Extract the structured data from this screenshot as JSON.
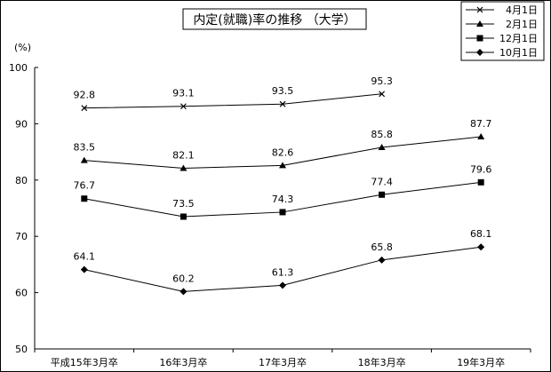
{
  "chart_data": {
    "type": "line",
    "title": "内定(就職)率の推移 （大学）",
    "yunit": "(%)",
    "ylim": [
      50,
      100
    ],
    "yticks": [
      50,
      60,
      70,
      80,
      90,
      100
    ],
    "grid": false,
    "legend_position": "top-right",
    "categories": [
      "平成15年3月卒",
      "16年3月卒",
      "17年3月卒",
      "18年3月卒",
      "19年3月卒"
    ],
    "series": [
      {
        "name": "4月1日",
        "marker": "x",
        "values": [
          92.8,
          93.1,
          93.5,
          95.3,
          null
        ],
        "labels": [
          "92.8",
          "93.1",
          "93.5",
          "95.3",
          null
        ]
      },
      {
        "name": "2月1日",
        "marker": "triangle",
        "values": [
          83.5,
          82.1,
          82.6,
          85.8,
          87.7
        ],
        "labels": [
          "83.5",
          "82.1",
          "82.6",
          "85.8",
          "87.7"
        ]
      },
      {
        "name": "12月1日",
        "marker": "square",
        "values": [
          76.7,
          73.5,
          74.3,
          77.4,
          79.6
        ],
        "labels": [
          "76.7",
          "73.5",
          "74.3",
          "77.4",
          "79.6"
        ]
      },
      {
        "name": "10月1日",
        "marker": "diamond",
        "values": [
          64.1,
          60.2,
          61.3,
          65.8,
          68.1
        ],
        "labels": [
          "64.1",
          "60.2",
          "61.3",
          "65.8",
          "68.1"
        ]
      }
    ]
  }
}
